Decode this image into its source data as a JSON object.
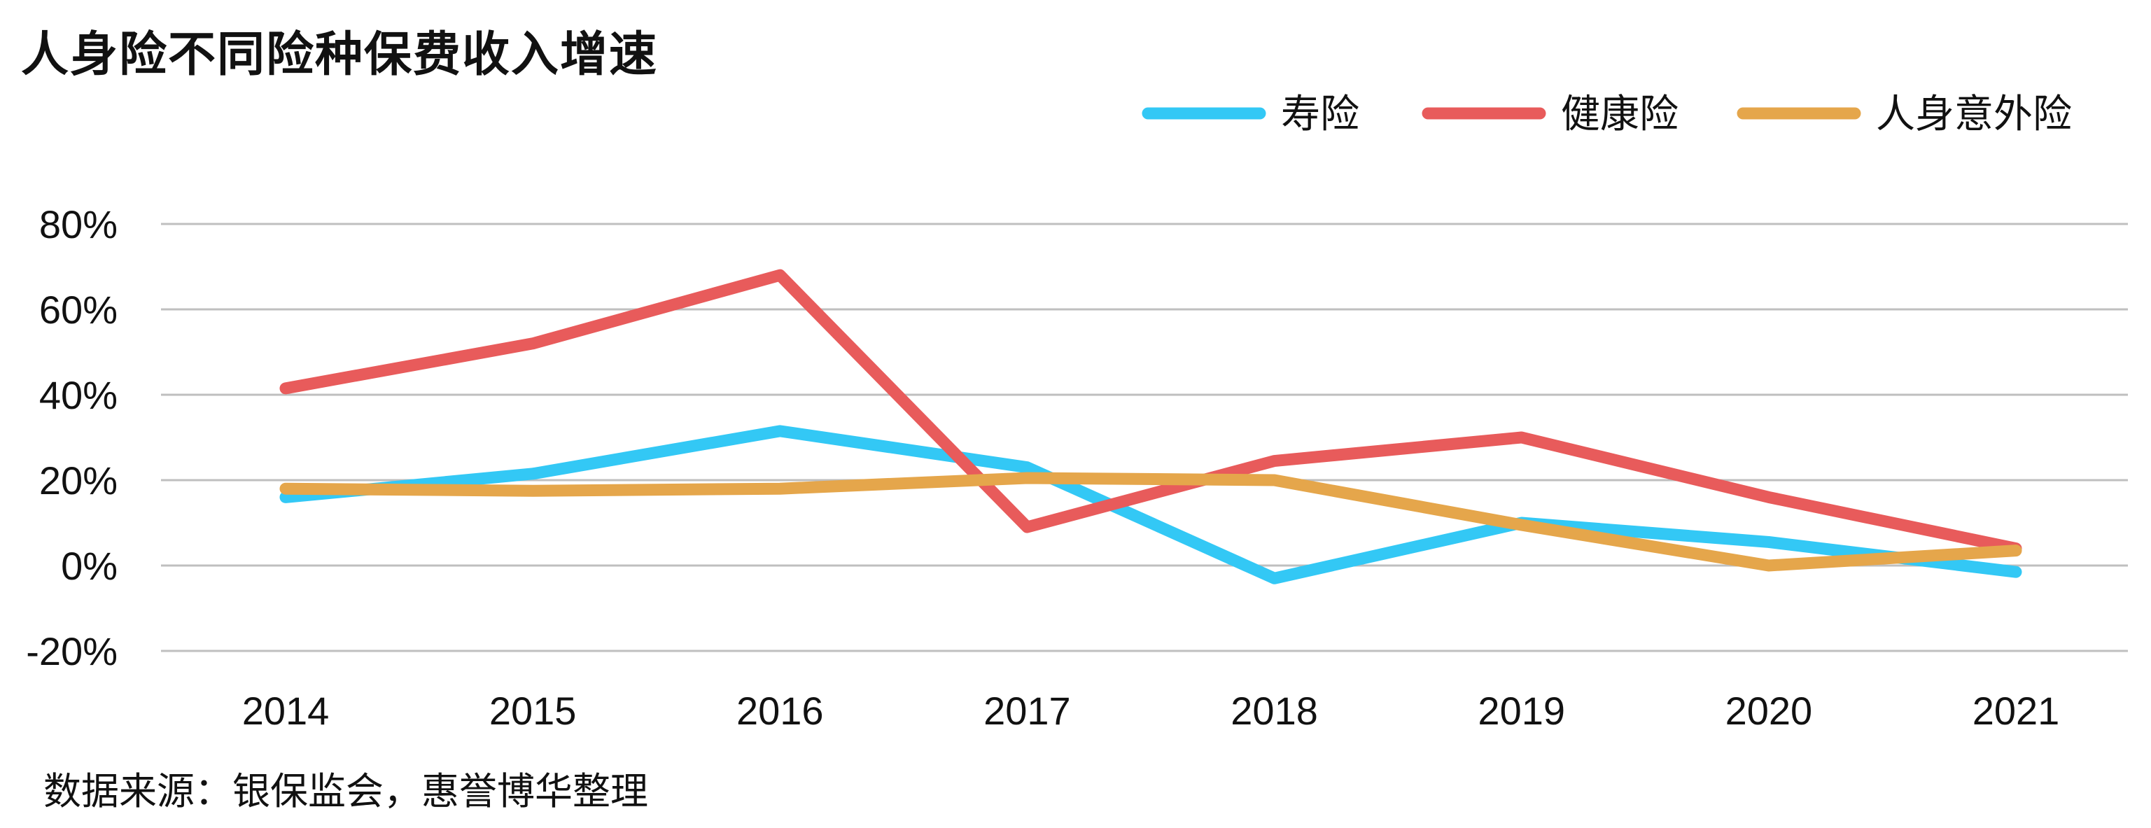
{
  "title": "人身险不同险种保费收入增速",
  "source": "数据来源：银保监会，惠誉博华整理",
  "chart_data": {
    "type": "line",
    "title": "人身险不同险种保费收入增速",
    "xlabel": "",
    "ylabel": "",
    "categories": [
      "2014",
      "2015",
      "2016",
      "2017",
      "2018",
      "2019",
      "2020",
      "2021"
    ],
    "y_ticks": [
      "80%",
      "60%",
      "40%",
      "20%",
      "0%",
      "-20%"
    ],
    "ylim": [
      -20,
      80
    ],
    "grid": true,
    "legend_position": "top-right",
    "series": [
      {
        "name": "寿险",
        "color": "#33C8F5",
        "values": [
          16,
          21.5,
          31.5,
          23,
          -3,
          10,
          5.5,
          -1.5
        ]
      },
      {
        "name": "健康险",
        "color": "#E85B5B",
        "values": [
          41.5,
          52,
          68,
          9,
          24.5,
          30,
          16,
          4
        ]
      },
      {
        "name": "人身意外险",
        "color": "#E5A64B",
        "values": [
          18,
          17.5,
          18,
          20.5,
          20,
          9.5,
          0,
          3.5
        ]
      }
    ]
  }
}
